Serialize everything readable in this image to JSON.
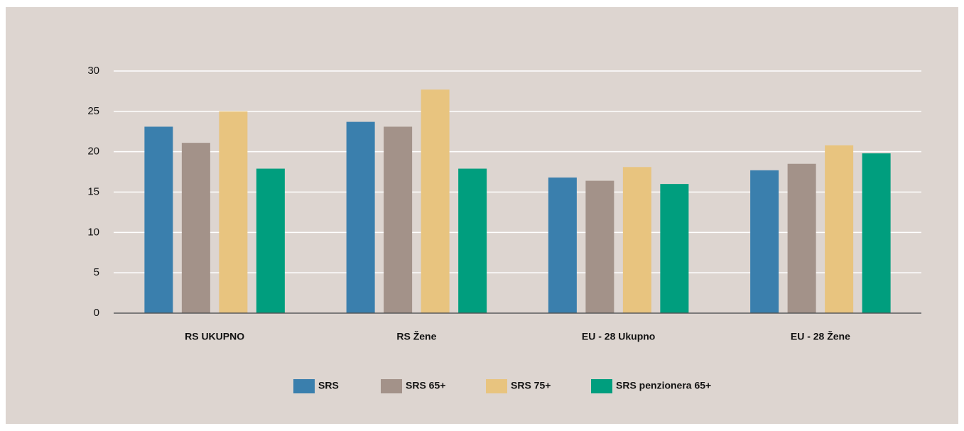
{
  "chart_data": {
    "type": "bar",
    "categories": [
      "RS UKUPNO",
      "RS Žene",
      "EU - 28 Ukupno",
      "EU - 28 Žene"
    ],
    "series": [
      {
        "name": "SRS",
        "color": "#3a7fad",
        "values": [
          23.1,
          23.7,
          16.8,
          17.7
        ]
      },
      {
        "name": "SRS 65+",
        "color": "#a39289",
        "values": [
          21.1,
          23.1,
          16.4,
          18.5
        ]
      },
      {
        "name": "SRS 75+",
        "color": "#e8c47f",
        "values": [
          25.0,
          27.7,
          18.1,
          20.8
        ]
      },
      {
        "name": "SRS penzionera 65+",
        "color": "#009e7e",
        "values": [
          17.9,
          17.9,
          16.0,
          19.8
        ]
      }
    ],
    "ylim": [
      0,
      30
    ],
    "yticks": [
      0,
      5,
      10,
      15,
      20,
      25,
      30
    ],
    "grid": true,
    "legend": "bottom"
  }
}
